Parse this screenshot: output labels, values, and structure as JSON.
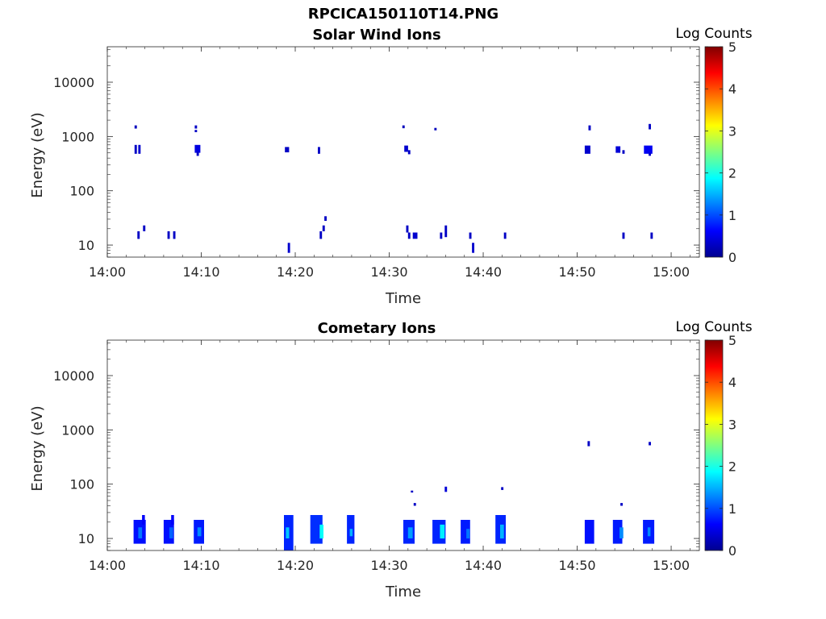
{
  "figure": {
    "title": "RPCICA150110T14.PNG"
  },
  "colormap": [
    "#00008f",
    "#0000ff",
    "#0080ff",
    "#00ffff",
    "#80ff80",
    "#ffff00",
    "#ff8000",
    "#ff0000",
    "#800000"
  ],
  "chart_data": [
    {
      "type": "heatmap",
      "title": "Solar Wind Ions",
      "xlabel": "Time",
      "ylabel": "Energy (eV)",
      "xticks": [
        "14:00",
        "14:10",
        "14:20",
        "14:30",
        "14:40",
        "14:50",
        "15:00"
      ],
      "xlim_minutes": [
        0,
        63
      ],
      "yticks": [
        10,
        100,
        1000,
        10000
      ],
      "ylim": [
        6,
        45000
      ],
      "yscale": "log",
      "colorbar": {
        "label": "Log Counts",
        "ticks": [
          0,
          1,
          2,
          3,
          4,
          5
        ],
        "clim": [
          0,
          5
        ]
      },
      "pixels": [
        {
          "t": 2.9,
          "dt": 0.25,
          "e0": 1400,
          "e1": 1600,
          "v": 0.25
        },
        {
          "t": 2.9,
          "dt": 0.25,
          "e0": 480,
          "e1": 700,
          "v": 0.3
        },
        {
          "t": 3.3,
          "dt": 0.25,
          "e0": 480,
          "e1": 700,
          "v": 0.35
        },
        {
          "t": 9.3,
          "dt": 0.25,
          "e0": 1400,
          "e1": 1600,
          "v": 0.3
        },
        {
          "t": 9.3,
          "dt": 0.25,
          "e0": 1200,
          "e1": 1320,
          "v": 0.3
        },
        {
          "t": 9.3,
          "dt": 0.6,
          "e0": 500,
          "e1": 700,
          "v": 0.45
        },
        {
          "t": 9.5,
          "dt": 0.25,
          "e0": 440,
          "e1": 520,
          "v": 0.3
        },
        {
          "t": 18.9,
          "dt": 0.45,
          "e0": 510,
          "e1": 640,
          "v": 0.3
        },
        {
          "t": 22.4,
          "dt": 0.25,
          "e0": 480,
          "e1": 640,
          "v": 0.3
        },
        {
          "t": 31.4,
          "dt": 0.25,
          "e0": 1420,
          "e1": 1600,
          "v": 0.25
        },
        {
          "t": 31.6,
          "dt": 0.4,
          "e0": 520,
          "e1": 680,
          "v": 0.35
        },
        {
          "t": 32.0,
          "dt": 0.25,
          "e0": 470,
          "e1": 560,
          "v": 0.3
        },
        {
          "t": 34.8,
          "dt": 0.25,
          "e0": 1300,
          "e1": 1440,
          "v": 0.25
        },
        {
          "t": 50.8,
          "dt": 0.6,
          "e0": 480,
          "e1": 680,
          "v": 0.35
        },
        {
          "t": 51.2,
          "dt": 0.25,
          "e0": 1300,
          "e1": 1600,
          "v": 0.3
        },
        {
          "t": 54.1,
          "dt": 0.5,
          "e0": 500,
          "e1": 660,
          "v": 0.4
        },
        {
          "t": 54.8,
          "dt": 0.25,
          "e0": 480,
          "e1": 560,
          "v": 0.3
        },
        {
          "t": 57.1,
          "dt": 0.9,
          "e0": 480,
          "e1": 680,
          "v": 0.55
        },
        {
          "t": 57.6,
          "dt": 0.25,
          "e0": 1350,
          "e1": 1700,
          "v": 0.3
        },
        {
          "t": 57.6,
          "dt": 0.25,
          "e0": 440,
          "e1": 500,
          "v": 0.3
        },
        {
          "t": 3.2,
          "dt": 0.25,
          "e0": 13,
          "e1": 18,
          "v": 0.3
        },
        {
          "t": 3.8,
          "dt": 0.25,
          "e0": 18,
          "e1": 23,
          "v": 0.3
        },
        {
          "t": 6.4,
          "dt": 0.25,
          "e0": 13,
          "e1": 18,
          "v": 0.3
        },
        {
          "t": 7.0,
          "dt": 0.25,
          "e0": 13,
          "e1": 18,
          "v": 0.3
        },
        {
          "t": 19.2,
          "dt": 0.25,
          "e0": 7.2,
          "e1": 11,
          "v": 0.35
        },
        {
          "t": 22.6,
          "dt": 0.25,
          "e0": 13,
          "e1": 18,
          "v": 0.3
        },
        {
          "t": 22.9,
          "dt": 0.25,
          "e0": 18,
          "e1": 23,
          "v": 0.3
        },
        {
          "t": 23.1,
          "dt": 0.25,
          "e0": 28,
          "e1": 34,
          "v": 0.3
        },
        {
          "t": 31.8,
          "dt": 0.25,
          "e0": 17,
          "e1": 23,
          "v": 0.3
        },
        {
          "t": 32.0,
          "dt": 0.25,
          "e0": 13,
          "e1": 17,
          "v": 0.3
        },
        {
          "t": 32.5,
          "dt": 0.5,
          "e0": 13,
          "e1": 17,
          "v": 0.35
        },
        {
          "t": 35.4,
          "dt": 0.25,
          "e0": 13,
          "e1": 17,
          "v": 0.3
        },
        {
          "t": 35.9,
          "dt": 0.25,
          "e0": 14,
          "e1": 23,
          "v": 0.3
        },
        {
          "t": 38.5,
          "dt": 0.25,
          "e0": 13,
          "e1": 17,
          "v": 0.3
        },
        {
          "t": 38.8,
          "dt": 0.25,
          "e0": 7.2,
          "e1": 11,
          "v": 0.35
        },
        {
          "t": 42.2,
          "dt": 0.25,
          "e0": 13,
          "e1": 17,
          "v": 0.3
        },
        {
          "t": 54.8,
          "dt": 0.25,
          "e0": 13,
          "e1": 17,
          "v": 0.3
        },
        {
          "t": 57.8,
          "dt": 0.25,
          "e0": 13,
          "e1": 17,
          "v": 0.3
        }
      ]
    },
    {
      "type": "heatmap",
      "title": "Cometary Ions",
      "xlabel": "Time",
      "ylabel": "Energy (eV)",
      "xticks": [
        "14:00",
        "14:10",
        "14:20",
        "14:30",
        "14:40",
        "14:50",
        "15:00"
      ],
      "xlim_minutes": [
        0,
        63
      ],
      "yticks": [
        10,
        100,
        1000,
        10000
      ],
      "ylim": [
        6,
        45000
      ],
      "yscale": "log",
      "colorbar": {
        "label": "Log Counts",
        "ticks": [
          0,
          1,
          2,
          3,
          4,
          5
        ],
        "clim": [
          0,
          5
        ]
      },
      "pixels": [
        {
          "t": 2.8,
          "dt": 1.3,
          "e0": 8,
          "e1": 22,
          "v": 0.7
        },
        {
          "t": 3.3,
          "dt": 0.4,
          "e0": 10,
          "e1": 16,
          "v": 1.2
        },
        {
          "t": 3.7,
          "dt": 0.3,
          "e0": 18,
          "e1": 27,
          "v": 0.6
        },
        {
          "t": 6.0,
          "dt": 1.1,
          "e0": 8,
          "e1": 22,
          "v": 0.7
        },
        {
          "t": 6.6,
          "dt": 0.4,
          "e0": 10,
          "e1": 16,
          "v": 1.1
        },
        {
          "t": 6.8,
          "dt": 0.3,
          "e0": 18,
          "e1": 27,
          "v": 0.6
        },
        {
          "t": 9.2,
          "dt": 1.1,
          "e0": 8,
          "e1": 22,
          "v": 0.75
        },
        {
          "t": 9.6,
          "dt": 0.4,
          "e0": 11,
          "e1": 16,
          "v": 1.3
        },
        {
          "t": 18.8,
          "dt": 1.0,
          "e0": 6,
          "e1": 27,
          "v": 0.8
        },
        {
          "t": 19.0,
          "dt": 0.35,
          "e0": 10,
          "e1": 16,
          "v": 1.6
        },
        {
          "t": 21.6,
          "dt": 1.3,
          "e0": 8,
          "e1": 27,
          "v": 0.85
        },
        {
          "t": 22.6,
          "dt": 0.4,
          "e0": 10,
          "e1": 18,
          "v": 1.9
        },
        {
          "t": 25.5,
          "dt": 0.8,
          "e0": 8,
          "e1": 27,
          "v": 0.8
        },
        {
          "t": 25.8,
          "dt": 0.3,
          "e0": 11,
          "e1": 15,
          "v": 1.5
        },
        {
          "t": 31.5,
          "dt": 1.2,
          "e0": 8,
          "e1": 22,
          "v": 0.8
        },
        {
          "t": 32.0,
          "dt": 0.5,
          "e0": 10,
          "e1": 16,
          "v": 1.4
        },
        {
          "t": 32.3,
          "dt": 0.25,
          "e0": 70,
          "e1": 76,
          "v": 0.3
        },
        {
          "t": 32.6,
          "dt": 0.25,
          "e0": 40,
          "e1": 45,
          "v": 0.3
        },
        {
          "t": 34.6,
          "dt": 1.4,
          "e0": 8,
          "e1": 22,
          "v": 0.8
        },
        {
          "t": 35.4,
          "dt": 0.5,
          "e0": 10,
          "e1": 18,
          "v": 1.8
        },
        {
          "t": 35.9,
          "dt": 0.25,
          "e0": 72,
          "e1": 90,
          "v": 0.4
        },
        {
          "t": 37.6,
          "dt": 1.0,
          "e0": 8,
          "e1": 22,
          "v": 0.75
        },
        {
          "t": 38.2,
          "dt": 0.35,
          "e0": 10,
          "e1": 15,
          "v": 1.2
        },
        {
          "t": 41.3,
          "dt": 1.1,
          "e0": 8,
          "e1": 27,
          "v": 0.8
        },
        {
          "t": 41.8,
          "dt": 0.4,
          "e0": 10,
          "e1": 18,
          "v": 1.5
        },
        {
          "t": 41.9,
          "dt": 0.25,
          "e0": 78,
          "e1": 88,
          "v": 0.3
        },
        {
          "t": 50.8,
          "dt": 1.0,
          "e0": 8,
          "e1": 22,
          "v": 0.7
        },
        {
          "t": 51.1,
          "dt": 0.25,
          "e0": 500,
          "e1": 620,
          "v": 0.3
        },
        {
          "t": 53.8,
          "dt": 1.0,
          "e0": 8,
          "e1": 22,
          "v": 0.75
        },
        {
          "t": 54.5,
          "dt": 0.4,
          "e0": 10,
          "e1": 16,
          "v": 1.3
        },
        {
          "t": 54.6,
          "dt": 0.25,
          "e0": 40,
          "e1": 45,
          "v": 0.3
        },
        {
          "t": 57.0,
          "dt": 1.2,
          "e0": 8,
          "e1": 22,
          "v": 0.75
        },
        {
          "t": 57.5,
          "dt": 0.3,
          "e0": 11,
          "e1": 16,
          "v": 1.3
        },
        {
          "t": 57.6,
          "dt": 0.25,
          "e0": 520,
          "e1": 600,
          "v": 0.3
        }
      ]
    }
  ]
}
